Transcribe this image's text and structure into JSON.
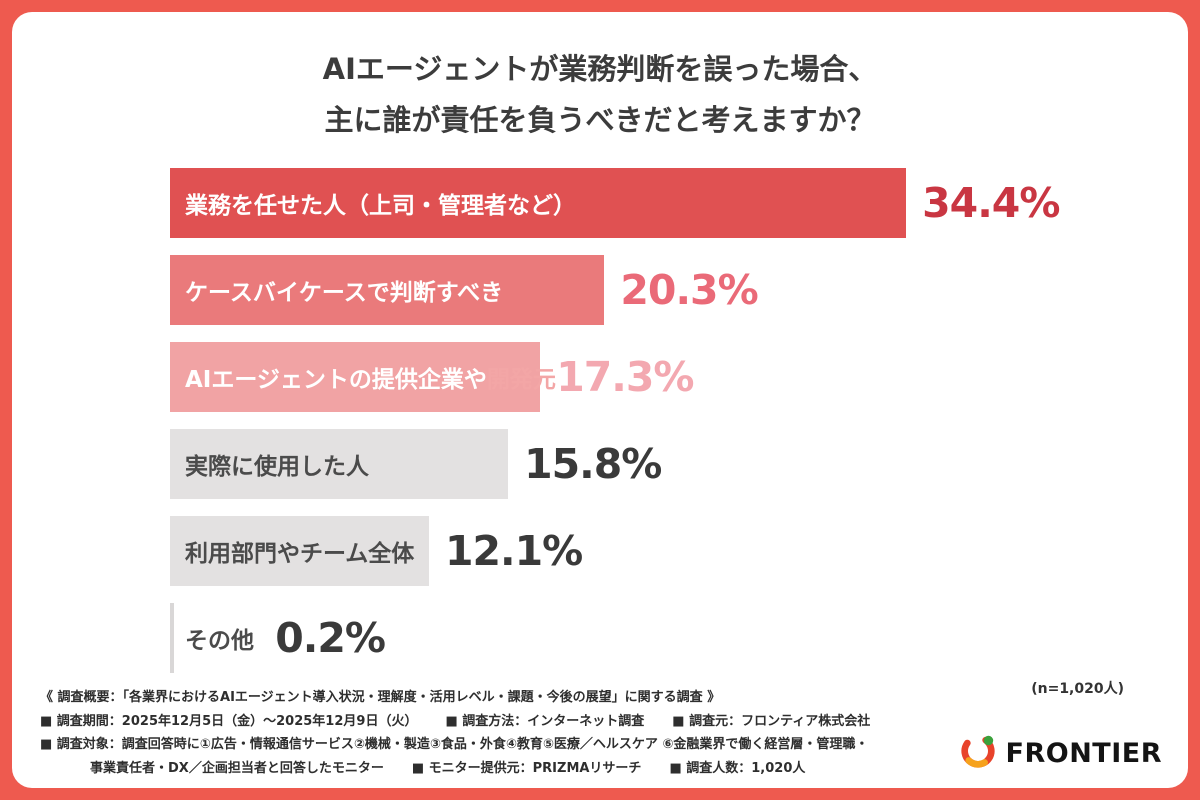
{
  "title": {
    "line1": "AIエージェントが業務判断を誤った場合、",
    "line2": "主に誰が責任を負うべきだと考えますか？"
  },
  "sample_note": "(n=1,020人)",
  "chart_data": {
    "type": "bar",
    "orientation": "horizontal",
    "title": "AIエージェントが業務判断を誤った場合、主に誰が責任を負うべきだと考えますか？",
    "unit": "%",
    "sample_size": "n=1,020人",
    "xlim": [
      0,
      40
    ],
    "grid": false,
    "legend": "none",
    "categories": [
      "業務を任せた人（上司・管理者など）",
      "ケースバイケースで判断すべき",
      "AIエージェントの提供企業や開発元",
      "実際に使用した人",
      "利用部門やチーム全体",
      "その他"
    ],
    "values": [
      34.4,
      20.3,
      17.3,
      15.8,
      12.1,
      0.2
    ],
    "bars": [
      {
        "label": "業務を任せた人（上司・管理者など）",
        "label_tail": "",
        "value": 34.4,
        "display": "34.4%",
        "bar_color": "#E05152",
        "label_color": "#FFFFFF",
        "pct_color": "#C93642"
      },
      {
        "label": "ケースバイケースで判断すべき",
        "label_tail": "",
        "value": 20.3,
        "display": "20.3%",
        "bar_color": "#EA7A7B",
        "label_color": "#FFFFFF",
        "pct_color": "#EA6A78"
      },
      {
        "label": "AIエージェントの提供企業や",
        "label_tail": "開発元",
        "value": 17.3,
        "display": "17.3%",
        "bar_color": "#F1A3A4",
        "label_color": "#FFFFFF",
        "tail_color": "#F3A6A6",
        "pct_color": "#F3A8B0"
      },
      {
        "label": "実際に使用した人",
        "label_tail": "",
        "value": 15.8,
        "display": "15.8%",
        "bar_color": "#E3E1E1",
        "label_color": "#4B4B4B",
        "pct_color": "#3A3A3A"
      },
      {
        "label": "利用部門やチーム全体",
        "label_tail": "",
        "value": 12.1,
        "display": "12.1%",
        "bar_color": "#E3E1E1",
        "label_color": "#4B4B4B",
        "pct_color": "#3A3A3A"
      },
      {
        "label": "その他",
        "label_tail": "",
        "value": 0.2,
        "display": "0.2%",
        "bar_color": "#D9D7D7",
        "label_color": "#4B4B4B",
        "pct_color": "#3A3A3A"
      }
    ]
  },
  "footer": {
    "overview": "《 調査概要：「各業界におけるAIエージェント導入状況・理解度・活用レベル・課題・今後の展望」に関する調査 》",
    "line2": [
      "■ 調査期間：2025年12月5日（金）〜2025年12月9日（火）",
      "■ 調査方法：インターネット調査",
      "■ 調査元：フロンティア株式会社"
    ],
    "line3": "■ 調査対象：調査回答時に①広告・情報通信サービス②機械・製造③食品・外食④教育⑤医療／ヘルスケア ⑥金融業界で働く経営層・管理職・",
    "line4": [
      "事業責任者・DX／企画担当者と回答したモニター",
      "■ モニター提供元：PRIZMAリサーチ",
      "■ 調査人数：1,020人"
    ]
  },
  "logo": {
    "name": "FRONTIER"
  },
  "colors": {
    "frame": "#EE5A4F",
    "card": "#FFFFFF"
  }
}
